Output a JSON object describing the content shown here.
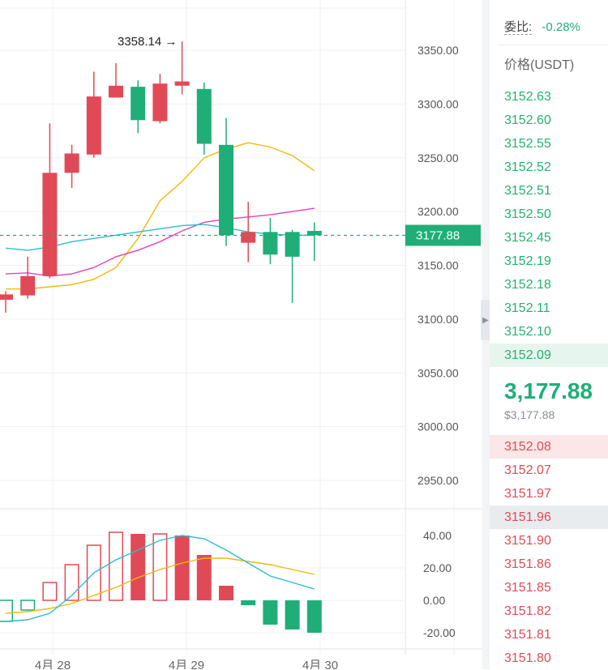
{
  "chart_data": [
    {
      "type": "candlestick",
      "y_axis_ticks": [
        "3350.00",
        "3300.00",
        "3250.00",
        "3200.00",
        "3150.00",
        "3100.00",
        "3050.00",
        "3000.00",
        "2950.00"
      ],
      "ylim": [
        2925,
        3390
      ],
      "current_price_label": "3177.88",
      "current_price": 3177.88,
      "high_marker_label": "3358.14 →",
      "high_marker_value": 3358.14,
      "x_axis_labels": [
        "4月 28",
        "4月 29",
        "4月 30"
      ],
      "candles": [
        {
          "o": 3118,
          "c": 3123,
          "h": 3126,
          "l": 3106
        },
        {
          "o": 3122,
          "c": 3140,
          "h": 3158,
          "l": 3119
        },
        {
          "o": 3140,
          "c": 3236,
          "h": 3282,
          "l": 3138
        },
        {
          "o": 3236,
          "c": 3254,
          "h": 3262,
          "l": 3222
        },
        {
          "o": 3253,
          "c": 3307,
          "h": 3330,
          "l": 3250
        },
        {
          "o": 3306,
          "c": 3317,
          "h": 3338,
          "l": 3306
        },
        {
          "o": 3316,
          "c": 3285,
          "h": 3322,
          "l": 3273
        },
        {
          "o": 3284,
          "c": 3319,
          "h": 3328,
          "l": 3282
        },
        {
          "o": 3317,
          "c": 3321,
          "h": 3358.14,
          "l": 3309
        },
        {
          "o": 3314,
          "c": 3263,
          "h": 3320,
          "l": 3253
        },
        {
          "o": 3262,
          "c": 3178,
          "h": 3287,
          "l": 3168
        },
        {
          "o": 3171,
          "c": 3181,
          "h": 3209,
          "l": 3153
        },
        {
          "o": 3181,
          "c": 3160,
          "h": 3194,
          "l": 3151
        },
        {
          "o": 3181,
          "c": 3158,
          "h": 3183,
          "l": 3115
        },
        {
          "o": 3182,
          "c": 3178,
          "h": 3190,
          "l": 3154
        }
      ],
      "ma_series": [
        {
          "color": "#f0b90b",
          "values": [
            3128,
            3128,
            3130,
            3132,
            3137,
            3148,
            3175,
            3210,
            3228,
            3250,
            3258,
            3264,
            3260,
            3252,
            3238
          ]
        },
        {
          "color": "#e83fbb",
          "values": [
            3142,
            3143,
            3140,
            3142,
            3148,
            3158,
            3164,
            3172,
            3182,
            3190,
            3193,
            3195,
            3197,
            3200,
            3203
          ]
        },
        {
          "color": "#2bbdd0",
          "values": [
            3166,
            3164,
            3167,
            3172,
            3175,
            3178,
            3181,
            3184,
            3187,
            3188,
            3185,
            3181,
            3179,
            3178,
            3178
          ]
        }
      ]
    },
    {
      "type": "histogram",
      "y_axis_ticks": [
        "40.00",
        "20.00",
        "0.00",
        "-20.00"
      ],
      "ylim": [
        -33,
        52
      ],
      "bars": [
        -13,
        -6,
        11,
        22,
        34,
        42,
        41,
        41,
        40,
        28,
        9,
        -3,
        -15,
        -18,
        -20
      ],
      "bar_styles": [
        "hollow-green",
        "hollow-green",
        "hollow-red",
        "hollow-red",
        "hollow-red",
        "hollow-red",
        "solid-red",
        "hollow-red",
        "solid-red",
        "solid-red",
        "solid-red",
        "solid-green",
        "solid-green",
        "solid-green",
        "solid-green"
      ],
      "lines": [
        {
          "color": "#f0b90b",
          "values": [
            -8,
            -7,
            -5,
            -2,
            3,
            8,
            14,
            19,
            23,
            26,
            26,
            24,
            22,
            19,
            16
          ]
        },
        {
          "color": "#2bbdd0",
          "values": [
            -13,
            -12,
            -8,
            3,
            17,
            25,
            31,
            37,
            40,
            38,
            31,
            23,
            15,
            11,
            7
          ]
        }
      ]
    }
  ],
  "colors": {
    "up": "#e04a57",
    "down": "#1fae78",
    "ask_text": "#21b26f",
    "bid_text": "#e04a57",
    "grid": "#eef1f4"
  },
  "orderbook": {
    "ratio_label": "委比:",
    "ratio_value": "-0.28%",
    "header": "价格(USDT)",
    "asks": [
      "3152.63",
      "3152.60",
      "3152.55",
      "3152.52",
      "3152.51",
      "3152.50",
      "3152.45",
      "3152.19",
      "3152.18",
      "3152.11",
      "3152.10",
      "3152.09"
    ],
    "last_price": "3,177.88",
    "last_price_usd": "$3,177.88",
    "bids": [
      "3152.08",
      "3152.07",
      "3151.97",
      "3151.96",
      "3151.90",
      "3151.86",
      "3151.85",
      "3151.82",
      "3151.81",
      "3151.80"
    ]
  }
}
